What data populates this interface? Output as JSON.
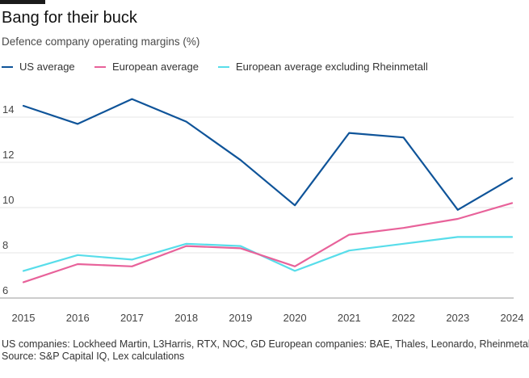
{
  "header": {
    "title": "Bang for their buck",
    "subtitle": "Defence company operating margins (%)"
  },
  "footer": {
    "note": "US companies: Lockheed Martin, L3Harris, RTX, NOC, GD European companies: BAE, Thales, Leonardo, Rheinmetall",
    "source": "Source: S&P Capital IQ, Lex calculations"
  },
  "chart_data": {
    "type": "line",
    "title": "Bang for their buck",
    "subtitle": "Defence company operating margins (%)",
    "xlabel": "",
    "ylabel": "",
    "categories": [
      "2015",
      "2016",
      "2017",
      "2018",
      "2019",
      "2020",
      "2021",
      "2022",
      "2023",
      "2024"
    ],
    "ylim": [
      6,
      15.5
    ],
    "yticks": [
      6,
      8,
      10,
      12,
      14
    ],
    "grid": "horizontal",
    "legend_position": "top-left",
    "series": [
      {
        "name": "US average",
        "color": "#0f5499",
        "values": [
          14.5,
          13.7,
          14.8,
          13.8,
          12.1,
          10.1,
          13.3,
          13.1,
          9.9,
          11.3
        ]
      },
      {
        "name": "European average",
        "color": "#e8629a",
        "values": [
          6.7,
          7.5,
          7.4,
          8.3,
          8.2,
          7.4,
          8.8,
          9.1,
          9.5,
          10.2
        ]
      },
      {
        "name": "European average excluding Rheinmetall",
        "color": "#58ddea",
        "values": [
          7.2,
          7.9,
          7.7,
          8.4,
          8.3,
          7.2,
          8.1,
          8.4,
          8.7,
          8.7
        ]
      }
    ]
  }
}
